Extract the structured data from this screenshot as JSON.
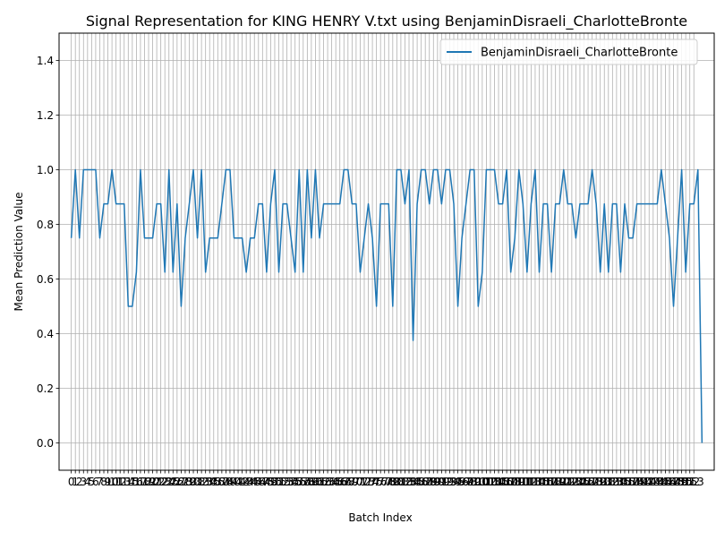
{
  "chart_data": {
    "type": "line",
    "title": "Signal Representation for KING HENRY V.txt using BenjaminDisraeli_CharlotteBronte",
    "xlabel": "Batch Index",
    "ylabel": "Mean Prediction Value",
    "xlim": [
      -3,
      158
    ],
    "ylim": [
      -0.1,
      1.5
    ],
    "x_ticks_from": 0,
    "x_ticks_to": 153,
    "y_ticks": [
      0.0,
      0.2,
      0.4,
      0.6,
      0.8,
      1.0,
      1.2,
      1.4
    ],
    "y_tick_labels": [
      "0.0",
      "0.2",
      "0.4",
      "0.6",
      "0.8",
      "1.0",
      "1.2",
      "1.4"
    ],
    "grid": true,
    "legend_position": "top-right",
    "series": [
      {
        "name": "BenjaminDisraeli_CharlotteBronte",
        "color": "#1f77b4",
        "values": [
          0.75,
          1.0,
          0.75,
          1.0,
          1.0,
          1.0,
          1.0,
          0.75,
          0.875,
          0.875,
          1.0,
          0.875,
          0.875,
          0.875,
          0.5,
          0.5,
          0.625,
          1.0,
          0.75,
          0.75,
          0.75,
          0.875,
          0.875,
          0.625,
          1.0,
          0.625,
          0.875,
          0.5,
          0.75,
          0.875,
          1.0,
          0.75,
          1.0,
          0.625,
          0.75,
          0.75,
          0.75,
          0.875,
          1.0,
          1.0,
          0.75,
          0.75,
          0.75,
          0.625,
          0.75,
          0.75,
          0.875,
          0.875,
          0.625,
          0.875,
          1.0,
          0.625,
          0.875,
          0.875,
          0.75,
          0.625,
          1.0,
          0.625,
          1.0,
          0.75,
          1.0,
          0.75,
          0.875,
          0.875,
          0.875,
          0.875,
          0.875,
          1.0,
          1.0,
          0.875,
          0.875,
          0.625,
          0.75,
          0.875,
          0.75,
          0.5,
          0.875,
          0.875,
          0.875,
          0.5,
          1.0,
          1.0,
          0.875,
          1.0,
          0.375,
          0.875,
          1.0,
          1.0,
          0.875,
          1.0,
          1.0,
          0.875,
          1.0,
          1.0,
          0.875,
          0.5,
          0.75,
          0.875,
          1.0,
          1.0,
          0.5,
          0.625,
          1.0,
          1.0,
          1.0,
          0.875,
          0.875,
          1.0,
          0.625,
          0.75,
          1.0,
          0.875,
          0.625,
          0.875,
          1.0,
          0.625,
          0.875,
          0.875,
          0.625,
          0.875,
          0.875,
          1.0,
          0.875,
          0.875,
          0.75,
          0.875,
          0.875,
          0.875,
          1.0,
          0.875,
          0.625,
          0.875,
          0.625,
          0.875,
          0.875,
          0.625,
          0.875,
          0.75,
          0.75,
          0.875,
          0.875,
          0.875,
          0.875,
          0.875,
          0.875,
          1.0,
          0.875,
          0.75,
          0.5,
          0.75,
          1.0,
          0.625,
          0.875,
          0.875,
          1.0,
          0.0
        ]
      }
    ]
  }
}
